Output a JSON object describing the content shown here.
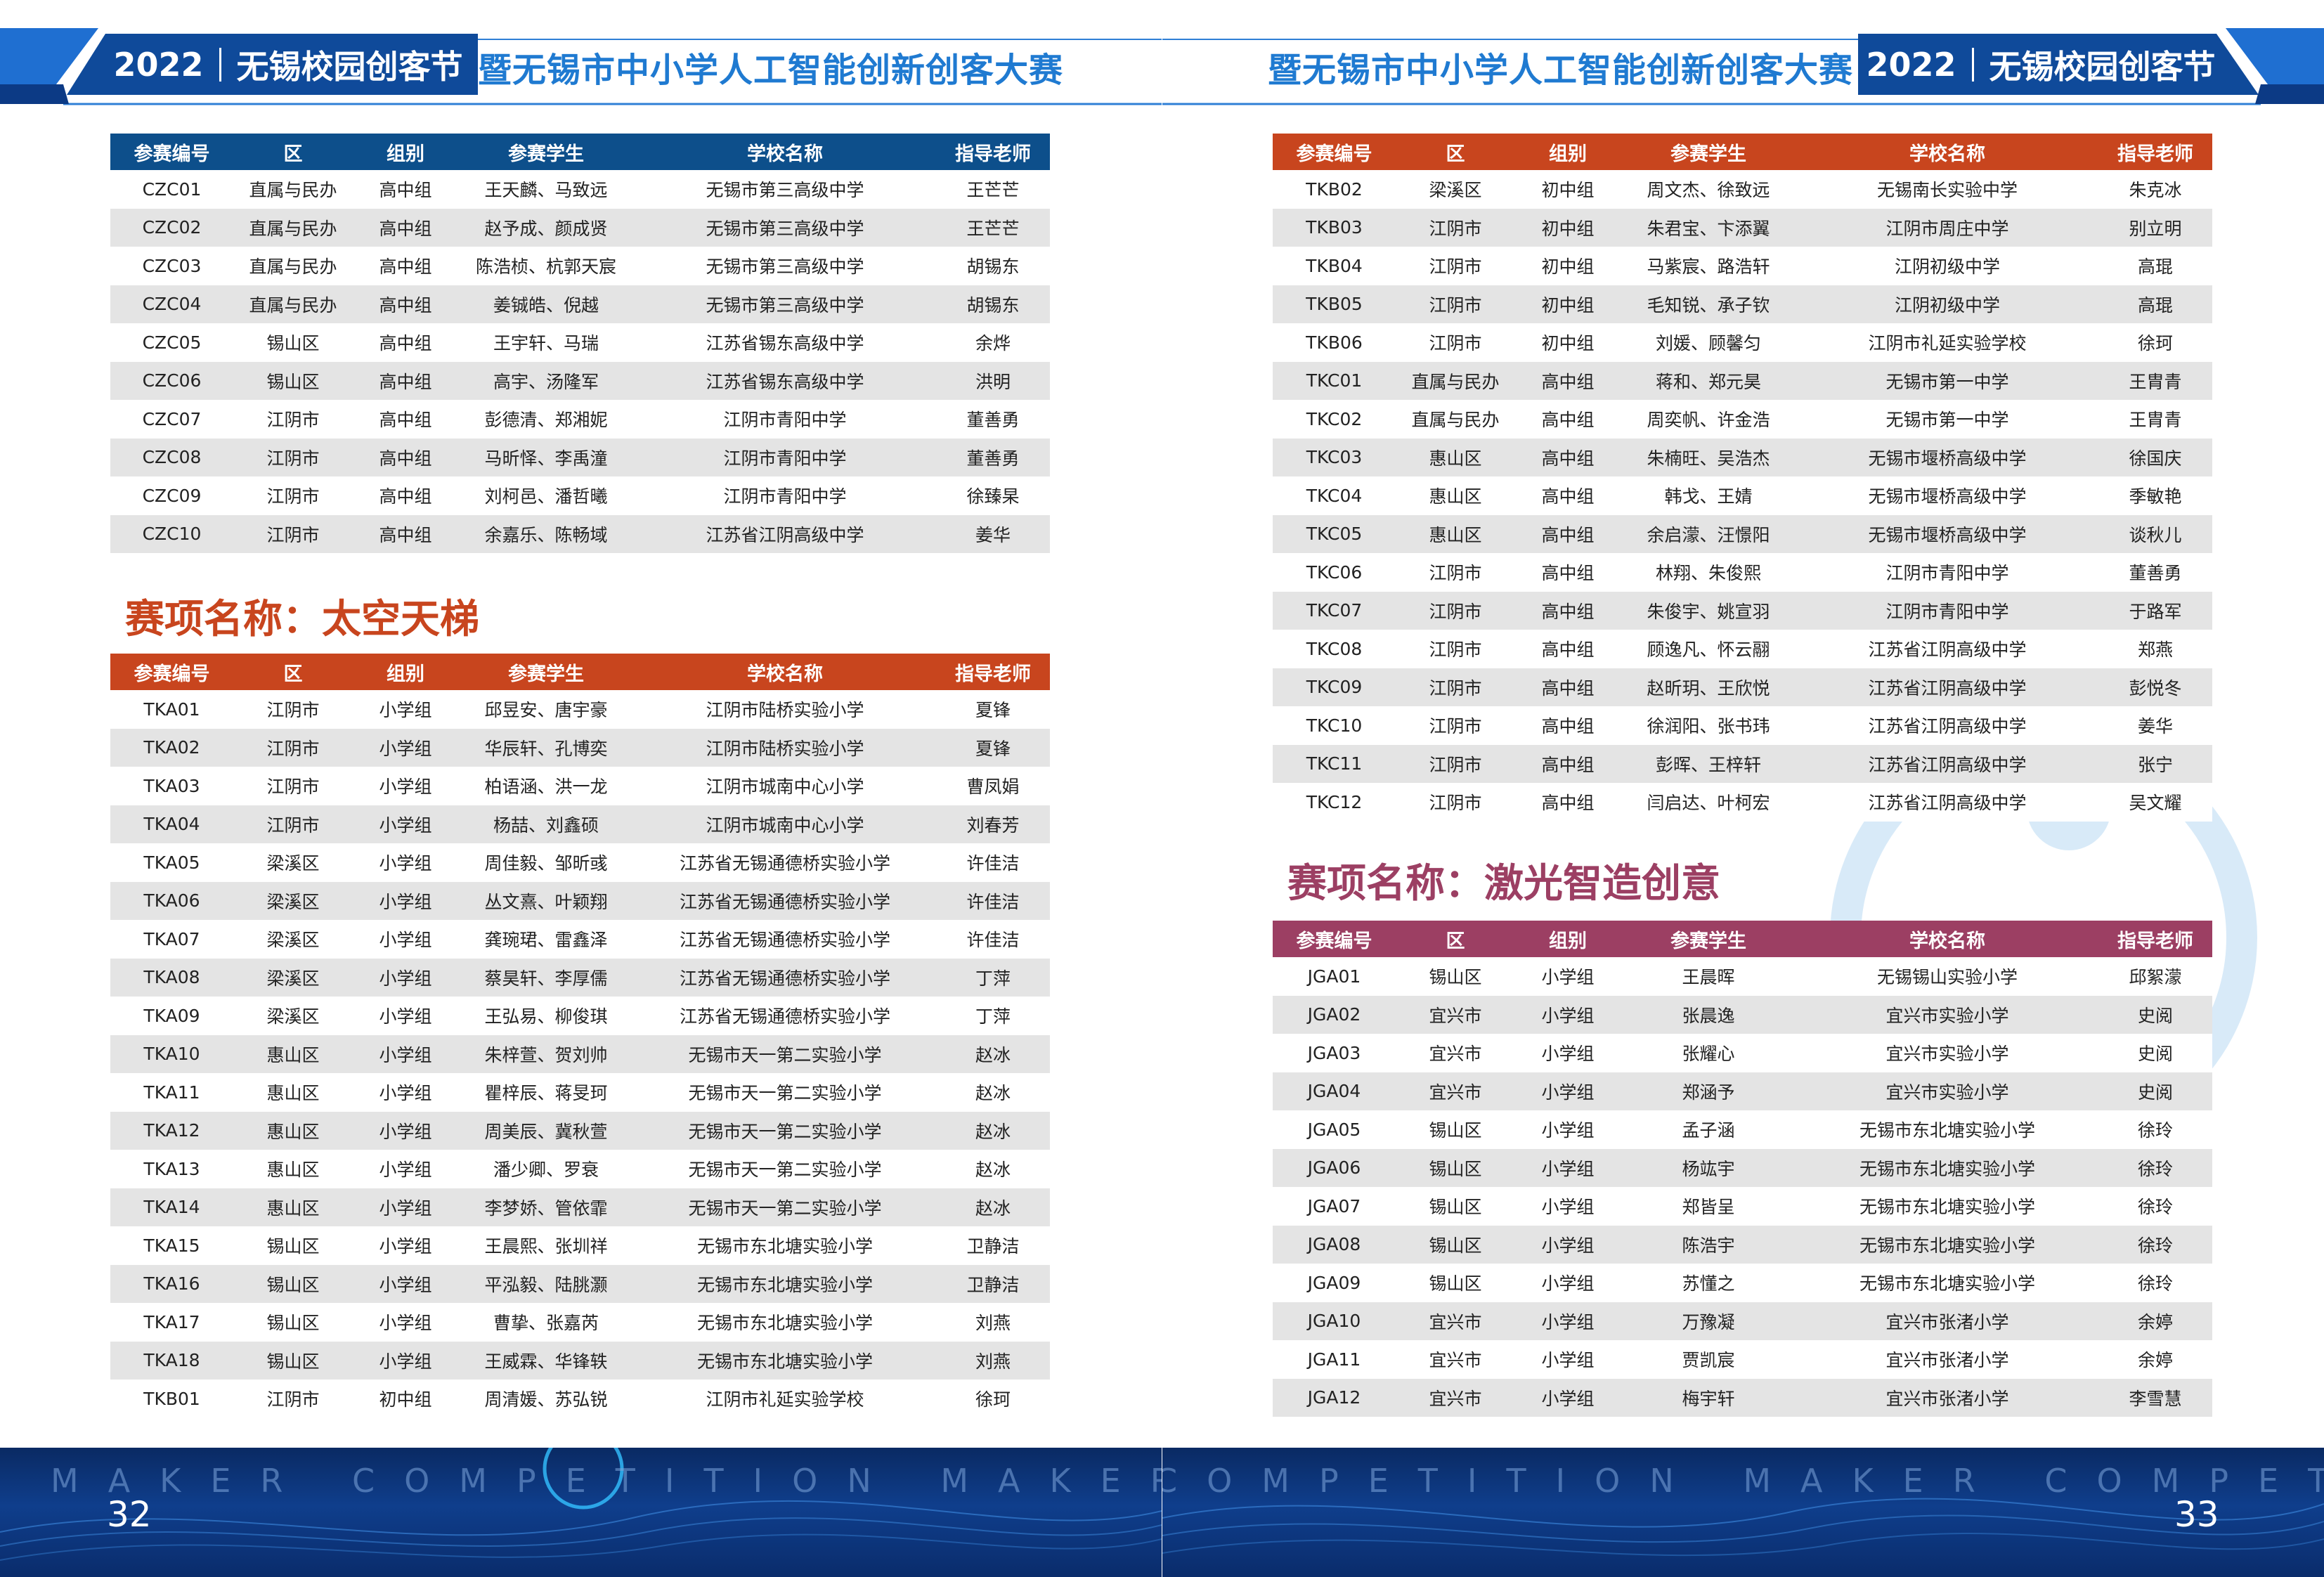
{
  "header": {
    "year": "2022",
    "festival": "无锡校园创客节",
    "competition": "暨无锡市中小学人工智能创新创客大赛"
  },
  "footer": {
    "tagline": "MAKER COMPETITION MAKER COMPETITION MAKER COMPETITION",
    "page_left": "32",
    "page_right": "33"
  },
  "columns": [
    "参赛编号",
    "区",
    "组别",
    "参赛学生",
    "学校名称",
    "指导老师"
  ],
  "section_space_elevator": "赛项名称：太空天梯",
  "section_laser": "赛项名称：激光智造创意",
  "table_czc": [
    [
      "CZC01",
      "直属与民办",
      "高中组",
      "王天麟、马致远",
      "无锡市第三高级中学",
      "王芒芒"
    ],
    [
      "CZC02",
      "直属与民办",
      "高中组",
      "赵予成、颜成贤",
      "无锡市第三高级中学",
      "王芒芒"
    ],
    [
      "CZC03",
      "直属与民办",
      "高中组",
      "陈浩桢、杭郭天宸",
      "无锡市第三高级中学",
      "胡锡东"
    ],
    [
      "CZC04",
      "直属与民办",
      "高中组",
      "姜铖皓、倪越",
      "无锡市第三高级中学",
      "胡锡东"
    ],
    [
      "CZC05",
      "锡山区",
      "高中组",
      "王宇轩、马瑞",
      "江苏省锡东高级中学",
      "余烨"
    ],
    [
      "CZC06",
      "锡山区",
      "高中组",
      "高宇、汤隆军",
      "江苏省锡东高级中学",
      "洪明"
    ],
    [
      "CZC07",
      "江阴市",
      "高中组",
      "彭德清、郑湘妮",
      "江阴市青阳中学",
      "董善勇"
    ],
    [
      "CZC08",
      "江阴市",
      "高中组",
      "马昕怿、李禹潼",
      "江阴市青阳中学",
      "董善勇"
    ],
    [
      "CZC09",
      "江阴市",
      "高中组",
      "刘柯邑、潘哲曦",
      "江阴市青阳中学",
      "徐臻杲"
    ],
    [
      "CZC10",
      "江阴市",
      "高中组",
      "余嘉乐、陈畅域",
      "江苏省江阴高级中学",
      "姜华"
    ]
  ],
  "table_tka": [
    [
      "TKA01",
      "江阴市",
      "小学组",
      "邱昱安、唐宇豪",
      "江阴市陆桥实验小学",
      "夏锋"
    ],
    [
      "TKA02",
      "江阴市",
      "小学组",
      "华辰轩、孔博奕",
      "江阴市陆桥实验小学",
      "夏锋"
    ],
    [
      "TKA03",
      "江阴市",
      "小学组",
      "柏语涵、洪一龙",
      "江阴市城南中心小学",
      "曹凤娟"
    ],
    [
      "TKA04",
      "江阴市",
      "小学组",
      "杨喆、刘鑫硕",
      "江阴市城南中心小学",
      "刘春芳"
    ],
    [
      "TKA05",
      "梁溪区",
      "小学组",
      "周佳毅、邹昕彧",
      "江苏省无锡通德桥实验小学",
      "许佳洁"
    ],
    [
      "TKA06",
      "梁溪区",
      "小学组",
      "丛文熹、叶颖翔",
      "江苏省无锡通德桥实验小学",
      "许佳洁"
    ],
    [
      "TKA07",
      "梁溪区",
      "小学组",
      "龚琬珺、雷鑫泽",
      "江苏省无锡通德桥实验小学",
      "许佳洁"
    ],
    [
      "TKA08",
      "梁溪区",
      "小学组",
      "蔡昊轩、李厚儒",
      "江苏省无锡通德桥实验小学",
      "丁萍"
    ],
    [
      "TKA09",
      "梁溪区",
      "小学组",
      "王弘易、柳俊琪",
      "江苏省无锡通德桥实验小学",
      "丁萍"
    ],
    [
      "TKA10",
      "惠山区",
      "小学组",
      "朱梓萱、贺刘帅",
      "无锡市天一第二实验小学",
      "赵冰"
    ],
    [
      "TKA11",
      "惠山区",
      "小学组",
      "瞿梓辰、蒋旻珂",
      "无锡市天一第二实验小学",
      "赵冰"
    ],
    [
      "TKA12",
      "惠山区",
      "小学组",
      "周美辰、冀秋萱",
      "无锡市天一第二实验小学",
      "赵冰"
    ],
    [
      "TKA13",
      "惠山区",
      "小学组",
      "潘少卿、罗衰",
      "无锡市天一第二实验小学",
      "赵冰"
    ],
    [
      "TKA14",
      "惠山区",
      "小学组",
      "李梦娇、管依霏",
      "无锡市天一第二实验小学",
      "赵冰"
    ],
    [
      "TKA15",
      "锡山区",
      "小学组",
      "王晨熙、张圳祥",
      "无锡市东北塘实验小学",
      "卫静洁"
    ],
    [
      "TKA16",
      "锡山区",
      "小学组",
      "平泓毅、陆朓灏",
      "无锡市东北塘实验小学",
      "卫静洁"
    ],
    [
      "TKA17",
      "锡山区",
      "小学组",
      "曹挚、张嘉芮",
      "无锡市东北塘实验小学",
      "刘燕"
    ],
    [
      "TKA18",
      "锡山区",
      "小学组",
      "王威霖、华锋轶",
      "无锡市东北塘实验小学",
      "刘燕"
    ],
    [
      "TKB01",
      "江阴市",
      "初中组",
      "周清媛、苏弘锐",
      "江阴市礼延实验学校",
      "徐珂"
    ]
  ],
  "table_tkb": [
    [
      "TKB02",
      "梁溪区",
      "初中组",
      "周文杰、徐致远",
      "无锡南长实验中学",
      "朱克冰"
    ],
    [
      "TKB03",
      "江阴市",
      "初中组",
      "朱君宝、卞添翼",
      "江阴市周庄中学",
      "别立明"
    ],
    [
      "TKB04",
      "江阴市",
      "初中组",
      "马紫宸、路浩轩",
      "江阴初级中学",
      "高琨"
    ],
    [
      "TKB05",
      "江阴市",
      "初中组",
      "毛知锐、承子钦",
      "江阴初级中学",
      "高琨"
    ],
    [
      "TKB06",
      "江阴市",
      "初中组",
      "刘媛、顾馨匀",
      "江阴市礼延实验学校",
      "徐珂"
    ],
    [
      "TKC01",
      "直属与民办",
      "高中组",
      "蒋和、郑元昊",
      "无锡市第一中学",
      "王胄青"
    ],
    [
      "TKC02",
      "直属与民办",
      "高中组",
      "周奕帆、许金浩",
      "无锡市第一中学",
      "王胄青"
    ],
    [
      "TKC03",
      "惠山区",
      "高中组",
      "朱楠旺、吴浩杰",
      "无锡市堰桥高级中学",
      "徐国庆"
    ],
    [
      "TKC04",
      "惠山区",
      "高中组",
      "韩戈、王婧",
      "无锡市堰桥高级中学",
      "季敏艳"
    ],
    [
      "TKC05",
      "惠山区",
      "高中组",
      "余启濛、汪憬阳",
      "无锡市堰桥高级中学",
      "谈秋儿"
    ],
    [
      "TKC06",
      "江阴市",
      "高中组",
      "林翔、朱俊熙",
      "江阴市青阳中学",
      "董善勇"
    ],
    [
      "TKC07",
      "江阴市",
      "高中组",
      "朱俊宇、姚宣羽",
      "江阴市青阳中学",
      "于路军"
    ],
    [
      "TKC08",
      "江阴市",
      "高中组",
      "顾逸凡、怀云翮",
      "江苏省江阴高级中学",
      "郑燕"
    ],
    [
      "TKC09",
      "江阴市",
      "高中组",
      "赵昕玥、王欣悦",
      "江苏省江阴高级中学",
      "彭悦冬"
    ],
    [
      "TKC10",
      "江阴市",
      "高中组",
      "徐润阳、张书玮",
      "江苏省江阴高级中学",
      "姜华"
    ],
    [
      "TKC11",
      "江阴市",
      "高中组",
      "彭晖、王梓轩",
      "江苏省江阴高级中学",
      "张宁"
    ],
    [
      "TKC12",
      "江阴市",
      "高中组",
      "闫启达、叶柯宏",
      "江苏省江阴高级中学",
      "吴文耀"
    ]
  ],
  "table_jga": [
    [
      "JGA01",
      "锡山区",
      "小学组",
      "王晨晖",
      "无锡锡山实验小学",
      "邱絮濛"
    ],
    [
      "JGA02",
      "宜兴市",
      "小学组",
      "张晨逸",
      "宜兴市实验小学",
      "史阅"
    ],
    [
      "JGA03",
      "宜兴市",
      "小学组",
      "张耀心",
      "宜兴市实验小学",
      "史阅"
    ],
    [
      "JGA04",
      "宜兴市",
      "小学组",
      "郑涵予",
      "宜兴市实验小学",
      "史阅"
    ],
    [
      "JGA05",
      "锡山区",
      "小学组",
      "孟子涵",
      "无锡市东北塘实验小学",
      "徐玲"
    ],
    [
      "JGA06",
      "锡山区",
      "小学组",
      "杨竑宇",
      "无锡市东北塘实验小学",
      "徐玲"
    ],
    [
      "JGA07",
      "锡山区",
      "小学组",
      "郑皆呈",
      "无锡市东北塘实验小学",
      "徐玲"
    ],
    [
      "JGA08",
      "锡山区",
      "小学组",
      "陈浩宇",
      "无锡市东北塘实验小学",
      "徐玲"
    ],
    [
      "JGA09",
      "锡山区",
      "小学组",
      "苏懂之",
      "无锡市东北塘实验小学",
      "徐玲"
    ],
    [
      "JGA10",
      "宜兴市",
      "小学组",
      "万豫凝",
      "宜兴市张渚小学",
      "余婷"
    ],
    [
      "JGA11",
      "宜兴市",
      "小学组",
      "贾凯宸",
      "宜兴市张渚小学",
      "余婷"
    ],
    [
      "JGA12",
      "宜兴市",
      "小学组",
      "梅宇轩",
      "宜兴市张渚小学",
      "李雪慧"
    ]
  ],
  "colors": {
    "header_blue": "#0d4f8b",
    "header_orange": "#c8451e",
    "header_plum": "#9c3f63",
    "section_orange": "#c8451e",
    "section_plum": "#9c3f63",
    "title_blue": "#1f7ad1",
    "row_stripe": "#e4e4e4"
  }
}
